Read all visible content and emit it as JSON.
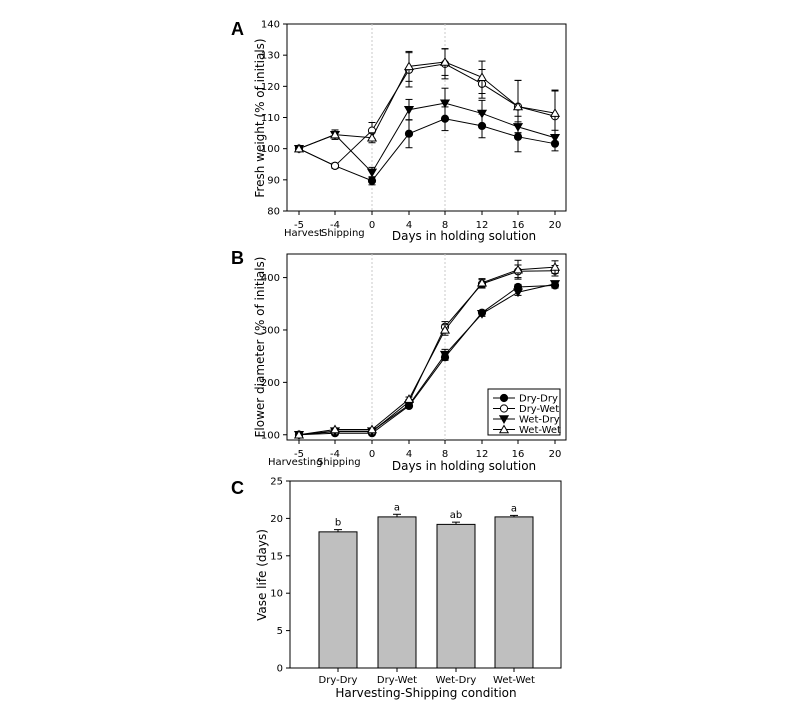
{
  "colors": {
    "line": "#000000",
    "bar_fill": "#bfbfbf",
    "grid": "#c8c8c8"
  },
  "chart_data": [
    {
      "panel": "A",
      "type": "line",
      "ylabel": "Fresh weight (% of initials)",
      "xlabel": "Days in holding solution",
      "pre_labels": [
        "Harvest",
        "Shipping"
      ],
      "ylim": [
        80,
        140
      ],
      "yticks": [
        80,
        90,
        100,
        110,
        120,
        130,
        140
      ],
      "x": [
        -5,
        -4,
        0,
        4,
        8,
        12,
        16,
        20
      ],
      "xtick_labels": [
        "-5",
        "-4",
        "0",
        "4",
        "8",
        "12",
        "16",
        "20"
      ],
      "grid": "vertical dashed at 0 and 8",
      "series": [
        {
          "name": "Dry-Dry",
          "marker": "filled-circle",
          "values": [
            100,
            94.5,
            89.7,
            104.8,
            109.6,
            107.3,
            103.8,
            101.6
          ],
          "errors": [
            0,
            0.8,
            1.3,
            4.5,
            3.8,
            3.8,
            4.8,
            2.3
          ]
        },
        {
          "name": "Dry-Wet",
          "marker": "open-circle",
          "values": [
            100,
            94.5,
            105.8,
            125.3,
            127.2,
            120.8,
            113.5,
            110.4
          ],
          "errors": [
            0,
            0.8,
            2.6,
            5.5,
            4.8,
            4.6,
            8.4,
            8.1
          ]
        },
        {
          "name": "Wet-Dry",
          "marker": "filled-triangle-down",
          "values": [
            100,
            104.5,
            92.4,
            112.5,
            114.6,
            111.3,
            107.0,
            103.5
          ],
          "errors": [
            0,
            1.5,
            1.6,
            3.3,
            4.8,
            4.2,
            3.4,
            2.4
          ]
        },
        {
          "name": "Wet-Wet",
          "marker": "open-triangle-up",
          "values": [
            100,
            104.5,
            103.5,
            126.4,
            127.8,
            122.9,
            113.5,
            111.4
          ],
          "errors": [
            0,
            1.5,
            1.6,
            4.8,
            4.3,
            5.2,
            8.4,
            7.4
          ]
        }
      ]
    },
    {
      "panel": "B",
      "type": "line",
      "ylabel": "Flower diameter (% of initials)",
      "xlabel": "Days in holding solution",
      "pre_labels": [
        "Harvesting",
        "Shipping"
      ],
      "ylim": [
        90,
        445
      ],
      "yticks": [
        100,
        200,
        300,
        400
      ],
      "x": [
        -5,
        -4,
        0,
        4,
        8,
        12,
        16,
        20
      ],
      "xtick_labels": [
        "-5",
        "-4",
        "0",
        "4",
        "8",
        "12",
        "16",
        "20"
      ],
      "grid": "vertical dashed at 0 and 8",
      "legend": {
        "position": "bottom-right",
        "entries": [
          "Dry-Dry",
          "Dry-Wet",
          "Wet-Dry",
          "Wet-Wet"
        ]
      },
      "series": [
        {
          "name": "Dry-Dry",
          "marker": "filled-circle",
          "values": [
            100,
            103,
            103,
            155,
            248,
            333,
            382,
            385
          ],
          "errors": [
            0,
            2,
            2,
            3,
            6,
            4,
            5,
            5
          ]
        },
        {
          "name": "Dry-Wet",
          "marker": "open-circle",
          "values": [
            100,
            106,
            106,
            163,
            306,
            388,
            412,
            413
          ],
          "errors": [
            0,
            2,
            2,
            4,
            10,
            8,
            12,
            10
          ]
        },
        {
          "name": "Wet-Dry",
          "marker": "filled-triangle-down",
          "values": [
            100,
            107,
            107,
            157,
            253,
            331,
            372,
            388
          ],
          "errors": [
            0,
            2,
            2,
            4,
            10,
            5,
            6,
            5
          ]
        },
        {
          "name": "Wet-Wet",
          "marker": "open-triangle-up",
          "values": [
            100,
            110,
            110,
            168,
            300,
            390,
            415,
            420
          ],
          "errors": [
            0,
            2,
            2,
            4,
            10,
            8,
            18,
            12
          ]
        }
      ]
    },
    {
      "panel": "C",
      "type": "bar",
      "ylabel": "Vase life (days)",
      "xlabel": "Harvesting-Shipping condition",
      "ylim": [
        0,
        25
      ],
      "yticks": [
        0,
        5,
        10,
        15,
        20,
        25
      ],
      "categories": [
        "Dry-Dry",
        "Dry-Wet",
        "Wet-Dry",
        "Wet-Wet"
      ],
      "values": [
        18.2,
        20.2,
        19.2,
        20.2
      ],
      "errors": [
        0.3,
        0.35,
        0.3,
        0.2
      ],
      "significance": [
        "b",
        "a",
        "ab",
        "a"
      ]
    }
  ]
}
